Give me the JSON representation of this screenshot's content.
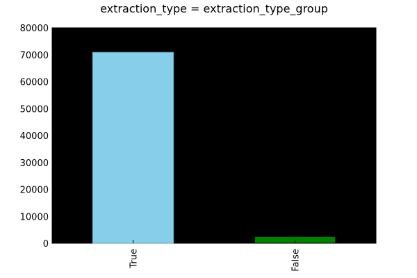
{
  "chart_data": {
    "type": "bar",
    "title": "extraction_type = extraction_type_group",
    "categories": [
      "True",
      "False"
    ],
    "values": [
      70900,
      2500
    ],
    "bar_colors": [
      "#87ceeb",
      "#008000"
    ],
    "bar_edge_color": "#5f9aa8",
    "plot_background": "#000000",
    "ylim": [
      0,
      80000
    ],
    "yticks": [
      0,
      10000,
      20000,
      30000,
      40000,
      50000,
      60000,
      70000,
      80000
    ],
    "xlabel": "",
    "ylabel": "",
    "grid": false,
    "legend": false
  }
}
